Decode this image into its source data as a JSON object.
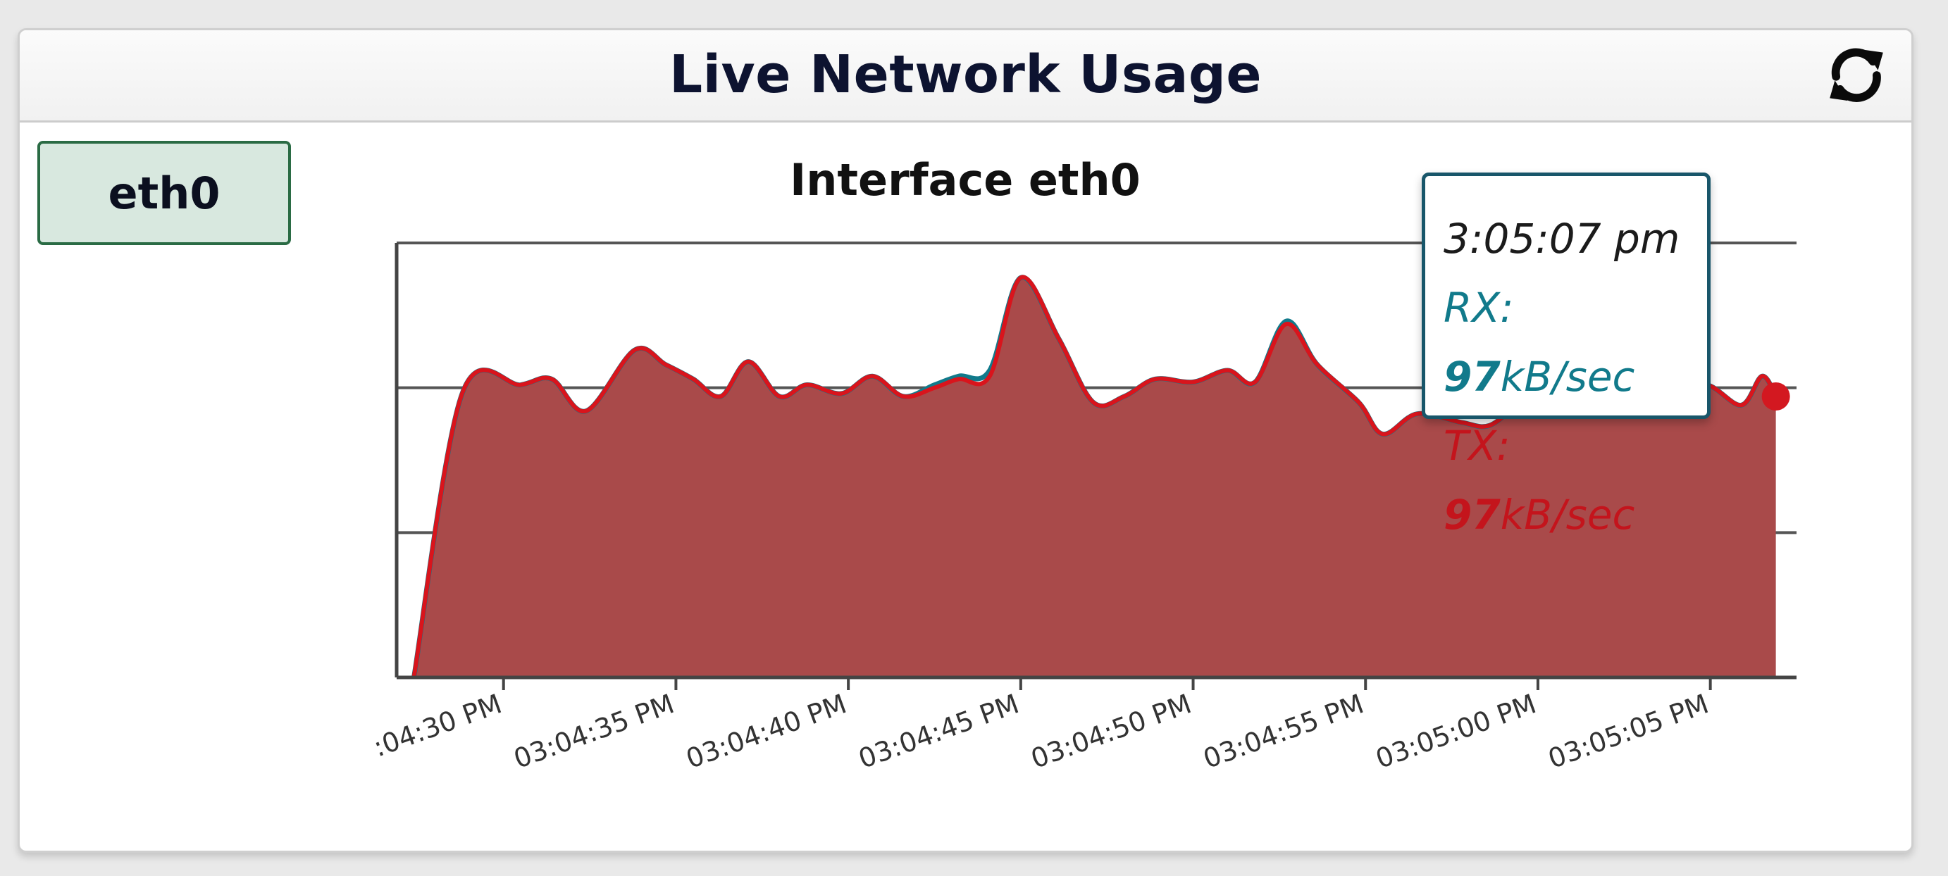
{
  "panel": {
    "title": "Live Network Usage",
    "refresh_icon": "refresh-icon"
  },
  "interfaces": [
    {
      "label": "eth0",
      "selected": true
    }
  ],
  "colors": {
    "rx_line": "#117a8b",
    "tx_line": "#d9141c",
    "area_fill": "#a94a4a",
    "selected_tab_bg": "#d8e8df",
    "selected_tab_border": "#2a6b44"
  },
  "tooltip": {
    "time": "3:05:07 pm",
    "rx_prefix": "RX: ",
    "rx_value": "97",
    "rx_unit": "kB/sec",
    "tx_prefix": "TX: ",
    "tx_value": "97",
    "tx_unit": "kB/sec"
  },
  "chart_data": {
    "type": "area",
    "title": "Interface eth0",
    "xlabel": "",
    "ylabel": "",
    "x_tick_labels": [
      ":04:30 PM",
      "03:04:35 PM",
      "03:04:40 PM",
      "03:04:45 PM",
      "03:04:50 PM",
      "03:04:55 PM",
      "03:05:00 PM",
      "03:05:05 PM"
    ],
    "x_tick_times": [
      30,
      35,
      40,
      45,
      50,
      55,
      60,
      65
    ],
    "x_range": [
      26.9,
      67.5
    ],
    "y_range": [
      0,
      150
    ],
    "grid": true,
    "series": [
      {
        "name": "RX",
        "x": [
          27.4,
          28.8,
          30.5,
          31.4,
          32.4,
          33.8,
          34.7,
          35.5,
          36.3,
          37.1,
          38.0,
          38.8,
          39.8,
          40.7,
          41.6,
          42.5,
          43.2,
          44.1,
          45.0,
          46.1,
          47.1,
          48.0,
          48.9,
          50.0,
          51.0,
          51.8,
          52.7,
          53.6,
          54.8,
          55.5,
          56.5,
          57.8,
          58.6,
          59.6,
          60.4,
          61.1,
          62.0,
          63.0,
          63.9,
          64.9,
          65.9,
          66.5,
          66.9
        ],
        "values": [
          0,
          98,
          101,
          103,
          92,
          113,
          108,
          103,
          97,
          109,
          97,
          101,
          98,
          104,
          97,
          101,
          104,
          106,
          138,
          117,
          95,
          97,
          103,
          102,
          106,
          102,
          123,
          108,
          95,
          84,
          91,
          88,
          87,
          95,
          92,
          93,
          96,
          99,
          98,
          101,
          94,
          104,
          97
        ]
      },
      {
        "name": "TX",
        "x": [
          27.4,
          28.8,
          30.5,
          31.4,
          32.4,
          33.8,
          34.7,
          35.5,
          36.3,
          37.1,
          38.0,
          38.8,
          39.8,
          40.7,
          41.6,
          42.5,
          43.2,
          44.1,
          45.0,
          46.1,
          47.1,
          48.0,
          48.9,
          50.0,
          51.0,
          51.8,
          52.7,
          53.6,
          54.8,
          55.5,
          56.5,
          57.8,
          58.6,
          59.6,
          60.4,
          61.1,
          62.0,
          63.0,
          63.9,
          64.9,
          65.9,
          66.5,
          66.9
        ],
        "values": [
          0,
          98,
          101,
          103,
          92,
          113,
          108,
          103,
          97,
          109,
          97,
          101,
          98,
          104,
          97,
          100,
          103,
          104,
          138,
          117,
          95,
          97,
          103,
          102,
          106,
          102,
          122,
          108,
          95,
          84,
          91,
          88,
          87,
          95,
          92,
          93,
          96,
          99,
          98,
          101,
          94,
          104,
          97
        ]
      }
    ],
    "highlight_point": {
      "x": 66.9,
      "y": 97
    }
  }
}
